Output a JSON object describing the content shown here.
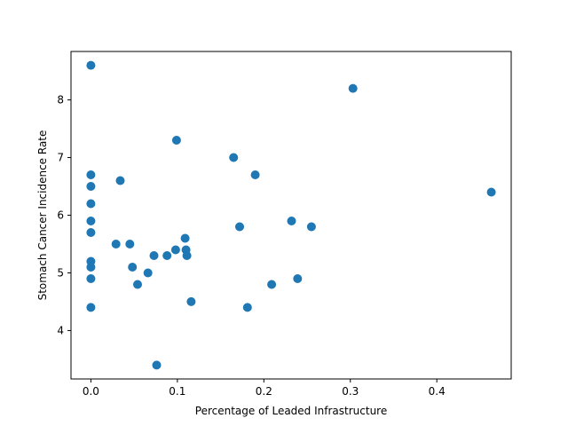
{
  "chart_data": {
    "type": "scatter",
    "title": "",
    "xlabel": "Percentage of Leaded Infrastructure",
    "ylabel": "Stomach Cancer Incidence Rate",
    "xlim": [
      -0.023,
      0.486
    ],
    "ylim": [
      3.16,
      8.84
    ],
    "x_ticks": [
      0.0,
      0.1,
      0.2,
      0.3,
      0.4
    ],
    "x_tick_labels": [
      "0.0",
      "0.1",
      "0.2",
      "0.3",
      "0.4"
    ],
    "y_ticks": [
      4,
      5,
      6,
      7,
      8
    ],
    "y_tick_labels": [
      "4",
      "5",
      "6",
      "7",
      "8"
    ],
    "grid": false,
    "marker_color": "#1f77b4",
    "series": [
      {
        "points": [
          [
            0.0,
            8.6
          ],
          [
            0.0,
            6.7
          ],
          [
            0.0,
            6.5
          ],
          [
            0.0,
            6.2
          ],
          [
            0.0,
            5.9
          ],
          [
            0.0,
            5.7
          ],
          [
            0.0,
            5.2
          ],
          [
            0.0,
            5.1
          ],
          [
            0.0,
            4.9
          ],
          [
            0.0,
            4.4
          ],
          [
            0.034,
            6.6
          ],
          [
            0.029,
            5.5
          ],
          [
            0.045,
            5.5
          ],
          [
            0.048,
            5.1
          ],
          [
            0.054,
            4.8
          ],
          [
            0.066,
            5.0
          ],
          [
            0.073,
            5.3
          ],
          [
            0.076,
            3.4
          ],
          [
            0.088,
            5.3
          ],
          [
            0.098,
            5.4
          ],
          [
            0.099,
            7.3
          ],
          [
            0.109,
            5.6
          ],
          [
            0.11,
            5.4
          ],
          [
            0.111,
            5.3
          ],
          [
            0.116,
            4.5
          ],
          [
            0.165,
            7.0
          ],
          [
            0.172,
            5.8
          ],
          [
            0.181,
            4.4
          ],
          [
            0.19,
            6.7
          ],
          [
            0.209,
            4.8
          ],
          [
            0.232,
            5.9
          ],
          [
            0.239,
            4.9
          ],
          [
            0.255,
            5.8
          ],
          [
            0.303,
            8.2
          ],
          [
            0.463,
            6.4
          ]
        ]
      }
    ]
  }
}
